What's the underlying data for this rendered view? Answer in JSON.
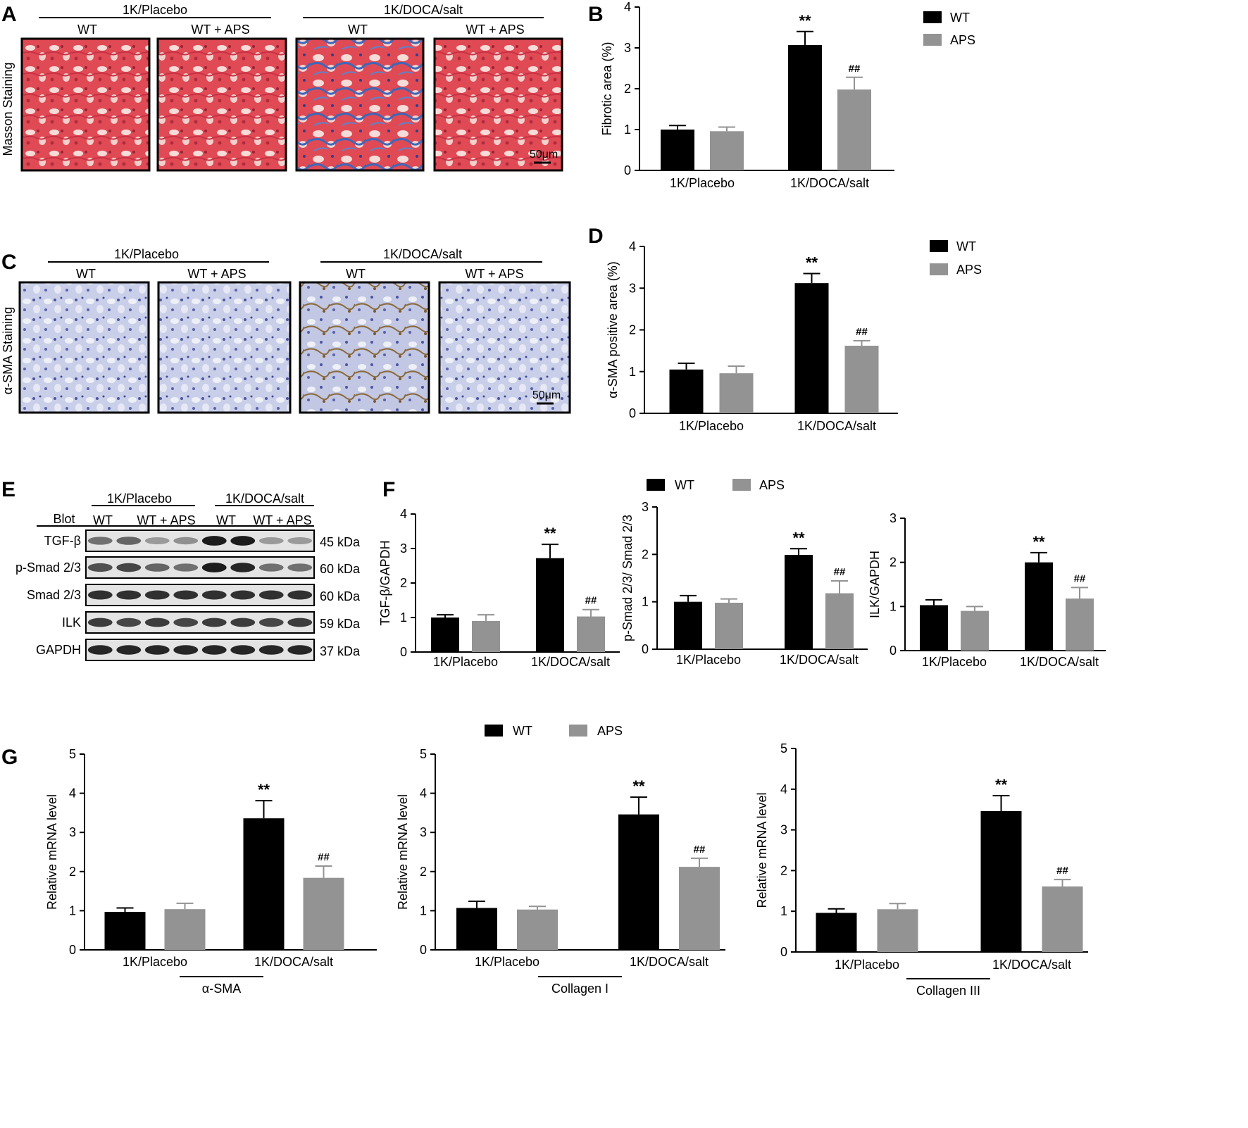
{
  "panels": {
    "A": {
      "letter": "A",
      "group_labels": [
        "1K/Placebo",
        "1K/DOCA/salt"
      ],
      "image_labels": [
        "WT",
        "WT + APS",
        "WT",
        "WT + APS"
      ],
      "row_label": "Masson Staining",
      "scale_bar": "50μm"
    },
    "C": {
      "letter": "C",
      "group_labels": [
        "1K/Placebo",
        "1K/DOCA/salt"
      ],
      "image_labels": [
        "WT",
        "WT + APS",
        "WT",
        "WT + APS"
      ],
      "row_label": "α-SMA Staining",
      "scale_bar": "50μm"
    },
    "E": {
      "letter": "E",
      "group_labels": [
        "1K/Placebo",
        "1K/DOCA/salt"
      ],
      "blot_header": "Blot",
      "lane_labels": [
        "WT",
        "WT + APS",
        "WT",
        "WT + APS"
      ],
      "rows": [
        {
          "name": "TGF-β",
          "kda": "45 kDa",
          "intensity": [
            0.55,
            0.6,
            0.35,
            0.4,
            0.95,
            0.95,
            0.35,
            0.35
          ]
        },
        {
          "name": "p-Smad 2/3",
          "kda": "60 kDa",
          "intensity": [
            0.7,
            0.75,
            0.6,
            0.55,
            0.95,
            0.9,
            0.55,
            0.55
          ]
        },
        {
          "name": "Smad 2/3",
          "kda": "60 kDa",
          "intensity": [
            0.85,
            0.85,
            0.85,
            0.85,
            0.85,
            0.85,
            0.85,
            0.85
          ]
        },
        {
          "name": "ILK",
          "kda": "59 kDa",
          "intensity": [
            0.8,
            0.75,
            0.8,
            0.75,
            0.8,
            0.8,
            0.75,
            0.8
          ]
        },
        {
          "name": "GAPDH",
          "kda": "37 kDa",
          "intensity": [
            0.9,
            0.9,
            0.9,
            0.9,
            0.9,
            0.9,
            0.9,
            0.9
          ]
        }
      ]
    },
    "F": {
      "letter": "F"
    },
    "G": {
      "letter": "G"
    },
    "B": {
      "letter": "B"
    },
    "D": {
      "letter": "D"
    }
  },
  "colors": {
    "wt": "#000000",
    "aps": "#939393"
  },
  "legends": {
    "B": [
      "WT",
      "APS"
    ],
    "D": [
      "WT",
      "APS"
    ],
    "F": [
      "WT",
      "APS"
    ],
    "G": [
      "WT",
      "APS"
    ]
  },
  "chart_data": [
    {
      "id": "B",
      "type": "bar",
      "categories": [
        "1K/Placebo",
        "1K/DOCA/salt"
      ],
      "ylabel": "Fibrotic area (%)",
      "ylim": [
        0,
        4
      ],
      "yticks": [
        "0",
        "1",
        "2",
        "3",
        "4"
      ],
      "series": [
        {
          "name": "WT",
          "values": [
            1.0,
            3.07
          ],
          "errors": [
            0.1,
            0.33
          ],
          "marks": [
            "",
            "**"
          ]
        },
        {
          "name": "APS",
          "values": [
            0.96,
            1.98
          ],
          "errors": [
            0.1,
            0.3
          ],
          "marks": [
            "",
            "##"
          ]
        }
      ]
    },
    {
      "id": "D",
      "type": "bar",
      "categories": [
        "1K/Placebo",
        "1K/DOCA/salt"
      ],
      "ylabel": "α-SMA positive area (%)",
      "ylim": [
        0,
        4
      ],
      "yticks": [
        "0",
        "1",
        "2",
        "3",
        "4"
      ],
      "series": [
        {
          "name": "WT",
          "values": [
            1.05,
            3.12
          ],
          "errors": [
            0.15,
            0.23
          ],
          "marks": [
            "",
            "**"
          ]
        },
        {
          "name": "APS",
          "values": [
            0.96,
            1.62
          ],
          "errors": [
            0.17,
            0.12
          ],
          "marks": [
            "",
            "##"
          ]
        }
      ]
    },
    {
      "id": "F1",
      "type": "bar",
      "categories": [
        "1K/Placebo",
        "1K/DOCA/salt"
      ],
      "ylabel": "TGF-β/GAPDH",
      "ylim": [
        0,
        4
      ],
      "yticks": [
        "0",
        "1",
        "2",
        "3",
        "4"
      ],
      "series": [
        {
          "name": "WT",
          "values": [
            1.0,
            2.72
          ],
          "errors": [
            0.08,
            0.4
          ],
          "marks": [
            "",
            "**"
          ]
        },
        {
          "name": "APS",
          "values": [
            0.9,
            1.03
          ],
          "errors": [
            0.18,
            0.2
          ],
          "marks": [
            "",
            "##"
          ]
        }
      ]
    },
    {
      "id": "F2",
      "type": "bar",
      "categories": [
        "1K/Placebo",
        "1K/DOCA/salt"
      ],
      "ylabel": "p-Smad 2/3/ Smad 2/3",
      "ylim": [
        0,
        3
      ],
      "yticks": [
        "0",
        "1",
        "2",
        "3"
      ],
      "series": [
        {
          "name": "WT",
          "values": [
            1.0,
            1.99
          ],
          "errors": [
            0.13,
            0.13
          ],
          "marks": [
            "",
            "**"
          ]
        },
        {
          "name": "APS",
          "values": [
            0.98,
            1.18
          ],
          "errors": [
            0.08,
            0.26
          ],
          "marks": [
            "",
            "##"
          ]
        }
      ]
    },
    {
      "id": "F3",
      "type": "bar",
      "categories": [
        "1K/Placebo",
        "1K/DOCA/salt"
      ],
      "ylabel": "ILK/GAPDH",
      "ylim": [
        0,
        3
      ],
      "yticks": [
        "0",
        "1",
        "2",
        "3"
      ],
      "series": [
        {
          "name": "WT",
          "values": [
            1.03,
            2.0
          ],
          "errors": [
            0.12,
            0.22
          ],
          "marks": [
            "",
            "**"
          ]
        },
        {
          "name": "APS",
          "values": [
            0.9,
            1.18
          ],
          "errors": [
            0.1,
            0.25
          ],
          "marks": [
            "",
            "##"
          ]
        }
      ]
    },
    {
      "id": "G1",
      "type": "bar",
      "categories": [
        "1K/Placebo",
        "1K/DOCA/salt"
      ],
      "group_label": "α-SMA",
      "ylabel": "Relative mRNA level",
      "ylim": [
        0,
        5
      ],
      "yticks": [
        "0",
        "1",
        "2",
        "3",
        "4",
        "5"
      ],
      "series": [
        {
          "name": "WT",
          "values": [
            0.97,
            3.36
          ],
          "errors": [
            0.1,
            0.45
          ],
          "marks": [
            "",
            "**"
          ]
        },
        {
          "name": "APS",
          "values": [
            1.04,
            1.84
          ],
          "errors": [
            0.15,
            0.3
          ],
          "marks": [
            "",
            "##"
          ]
        }
      ]
    },
    {
      "id": "G2",
      "type": "bar",
      "categories": [
        "1K/Placebo",
        "1K/DOCA/salt"
      ],
      "group_label": "Collagen I",
      "ylabel": "Relative mRNA level",
      "ylim": [
        0,
        5
      ],
      "yticks": [
        "0",
        "1",
        "2",
        "3",
        "4",
        "5"
      ],
      "series": [
        {
          "name": "WT",
          "values": [
            1.07,
            3.46
          ],
          "errors": [
            0.17,
            0.44
          ],
          "marks": [
            "",
            "**"
          ]
        },
        {
          "name": "APS",
          "values": [
            1.03,
            2.12
          ],
          "errors": [
            0.08,
            0.22
          ],
          "marks": [
            "",
            "##"
          ]
        }
      ]
    },
    {
      "id": "G3",
      "type": "bar",
      "categories": [
        "1K/Placebo",
        "1K/DOCA/salt"
      ],
      "group_label": "Collagen III",
      "ylabel": "Relative mRNA level",
      "ylim": [
        0,
        5
      ],
      "yticks": [
        "0",
        "1",
        "2",
        "3",
        "4",
        "5"
      ],
      "series": [
        {
          "name": "WT",
          "values": [
            0.96,
            3.46
          ],
          "errors": [
            0.1,
            0.38
          ],
          "marks": [
            "",
            "**"
          ]
        },
        {
          "name": "APS",
          "values": [
            1.05,
            1.61
          ],
          "errors": [
            0.14,
            0.17
          ],
          "marks": [
            "",
            "##"
          ]
        }
      ]
    }
  ]
}
